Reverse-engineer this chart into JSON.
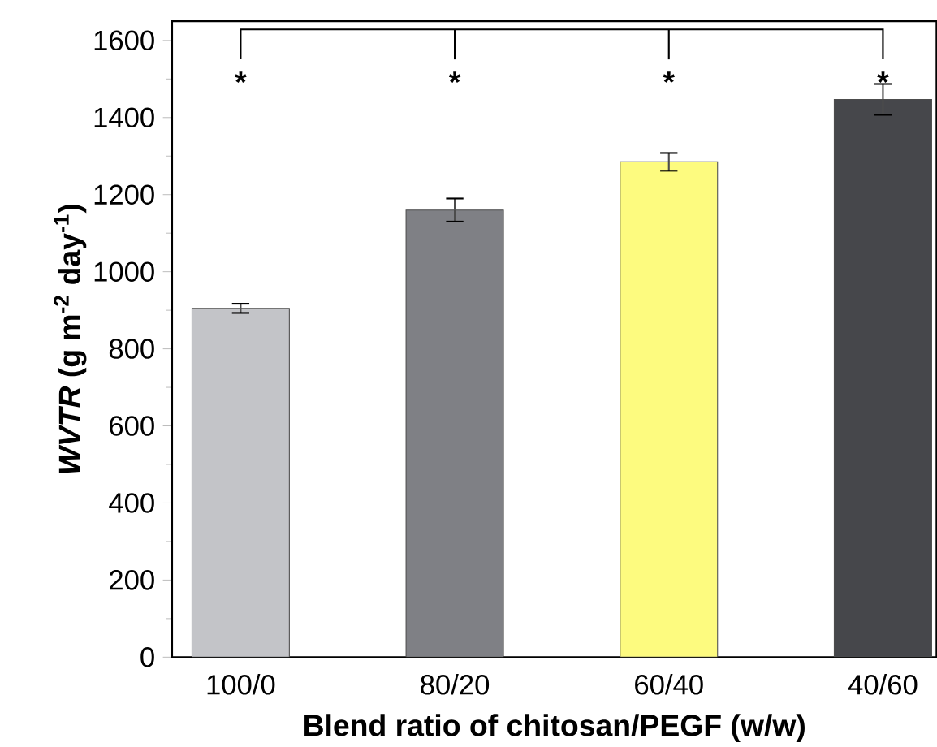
{
  "chart_data": {
    "type": "bar",
    "xlabel": "Blend ratio of chitosan/PEGF (w/w)",
    "ylabel": "*WVTR* (g m$^{-2}$ day$^{-1}$)",
    "categories": [
      "100/0",
      "80/20",
      "60/40",
      "40/60"
    ],
    "values": [
      905,
      1160,
      1285,
      1447
    ],
    "errors": [
      12,
      30,
      23,
      40
    ],
    "colors": [
      "#c3c4c8",
      "#7f8085",
      "#fdfb7f",
      "#46474b"
    ],
    "ylim": [
      0,
      1650
    ],
    "yticks": [
      0,
      200,
      400,
      600,
      800,
      1000,
      1200,
      1400,
      1600
    ],
    "annotations": [
      "*",
      "*",
      "*",
      "*"
    ]
  }
}
